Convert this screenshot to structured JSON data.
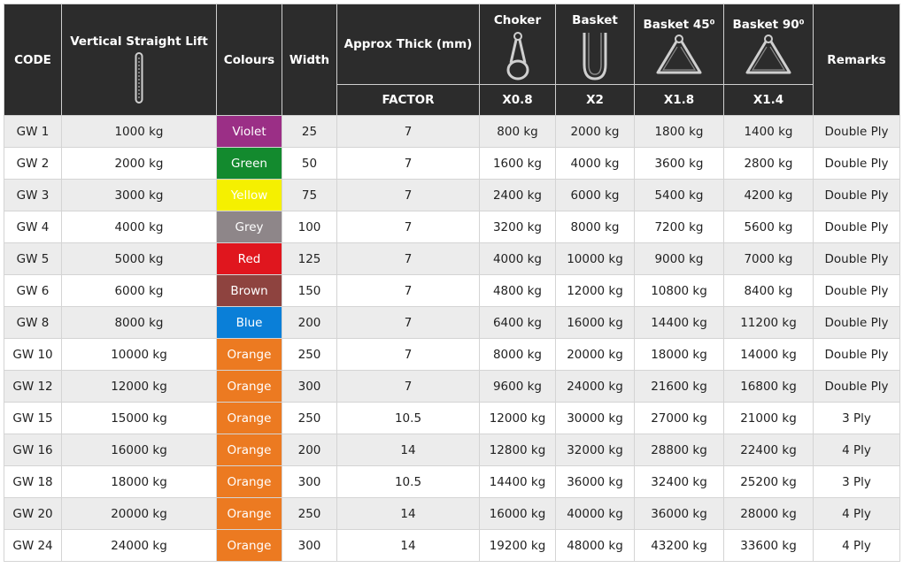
{
  "header": {
    "code": "CODE",
    "vertical": "Vertical Straight Lift",
    "colours": "Colours",
    "width": "Width",
    "thick": "Approx Thick (mm)",
    "factor": "FACTOR",
    "choker": "Choker",
    "choker_factor": "X0.8",
    "basket": "Basket",
    "basket_factor": "X2",
    "basket45": "Basket 45⁰",
    "basket45_factor": "X1.8",
    "basket90": "Basket 90⁰",
    "basket90_factor": "X1.4",
    "remarks": "Remarks"
  },
  "rows": [
    {
      "code": "GW 1",
      "vertical": "1000 kg",
      "colour": "Violet",
      "colour_hex": "#9b2f86",
      "width": "25",
      "thick": "7",
      "choker": "800 kg",
      "basket": "2000 kg",
      "basket45": "1800 kg",
      "basket90": "1400 kg",
      "remarks": "Double Ply"
    },
    {
      "code": "GW 2",
      "vertical": "2000 kg",
      "colour": "Green",
      "colour_hex": "#138a2e",
      "width": "50",
      "thick": "7",
      "choker": "1600 kg",
      "basket": "4000 kg",
      "basket45": "3600 kg",
      "basket90": "2800 kg",
      "remarks": "Double Ply"
    },
    {
      "code": "GW 3",
      "vertical": "3000 kg",
      "colour": "Yellow",
      "colour_hex": "#f5f000",
      "width": "75",
      "thick": "7",
      "choker": "2400 kg",
      "basket": "6000 kg",
      "basket45": "5400 kg",
      "basket90": "4200 kg",
      "remarks": "Double Ply"
    },
    {
      "code": "GW 4",
      "vertical": "4000 kg",
      "colour": "Grey",
      "colour_hex": "#8e8689",
      "width": "100",
      "thick": "7",
      "choker": "3200 kg",
      "basket": "8000 kg",
      "basket45": "7200 kg",
      "basket90": "5600 kg",
      "remarks": "Double Ply"
    },
    {
      "code": "GW 5",
      "vertical": "5000 kg",
      "colour": "Red",
      "colour_hex": "#e0161e",
      "width": "125",
      "thick": "7",
      "choker": "4000 kg",
      "basket": "10000 kg",
      "basket45": "9000 kg",
      "basket90": "7000 kg",
      "remarks": "Double Ply"
    },
    {
      "code": "GW 6",
      "vertical": "6000 kg",
      "colour": "Brown",
      "colour_hex": "#8e433f",
      "width": "150",
      "thick": "7",
      "choker": "4800 kg",
      "basket": "12000 kg",
      "basket45": "10800 kg",
      "basket90": "8400 kg",
      "remarks": "Double Ply"
    },
    {
      "code": "GW 8",
      "vertical": "8000 kg",
      "colour": "Blue",
      "colour_hex": "#0a7fd8",
      "width": "200",
      "thick": "7",
      "choker": "6400 kg",
      "basket": "16000 kg",
      "basket45": "14400 kg",
      "basket90": "11200 kg",
      "remarks": "Double Ply"
    },
    {
      "code": "GW 10",
      "vertical": "10000 kg",
      "colour": "Orange",
      "colour_hex": "#ec7a21",
      "width": "250",
      "thick": "7",
      "choker": "8000 kg",
      "basket": "20000 kg",
      "basket45": "18000 kg",
      "basket90": "14000 kg",
      "remarks": "Double Ply"
    },
    {
      "code": "GW 12",
      "vertical": "12000 kg",
      "colour": "Orange",
      "colour_hex": "#ec7a21",
      "width": "300",
      "thick": "7",
      "choker": "9600 kg",
      "basket": "24000 kg",
      "basket45": "21600 kg",
      "basket90": "16800 kg",
      "remarks": "Double Ply"
    },
    {
      "code": "GW 15",
      "vertical": "15000 kg",
      "colour": "Orange",
      "colour_hex": "#ec7a21",
      "width": "250",
      "thick": "10.5",
      "choker": "12000 kg",
      "basket": "30000 kg",
      "basket45": "27000 kg",
      "basket90": "21000 kg",
      "remarks": "3 Ply"
    },
    {
      "code": "GW 16",
      "vertical": "16000 kg",
      "colour": "Orange",
      "colour_hex": "#ec7a21",
      "width": "200",
      "thick": "14",
      "choker": "12800 kg",
      "basket": "32000 kg",
      "basket45": "28800 kg",
      "basket90": "22400 kg",
      "remarks": "4 Ply"
    },
    {
      "code": "GW 18",
      "vertical": "18000 kg",
      "colour": "Orange",
      "colour_hex": "#ec7a21",
      "width": "300",
      "thick": "10.5",
      "choker": "14400 kg",
      "basket": "36000 kg",
      "basket45": "32400 kg",
      "basket90": "25200 kg",
      "remarks": "3 Ply"
    },
    {
      "code": "GW 20",
      "vertical": "20000 kg",
      "colour": "Orange",
      "colour_hex": "#ec7a21",
      "width": "250",
      "thick": "14",
      "choker": "16000 kg",
      "basket": "40000 kg",
      "basket45": "36000 kg",
      "basket90": "28000 kg",
      "remarks": "4 Ply"
    },
    {
      "code": "GW 24",
      "vertical": "24000 kg",
      "colour": "Orange",
      "colour_hex": "#ec7a21",
      "width": "300",
      "thick": "14",
      "choker": "19200 kg",
      "basket": "48000 kg",
      "basket45": "43200 kg",
      "basket90": "33600 kg",
      "remarks": "4 Ply"
    }
  ]
}
